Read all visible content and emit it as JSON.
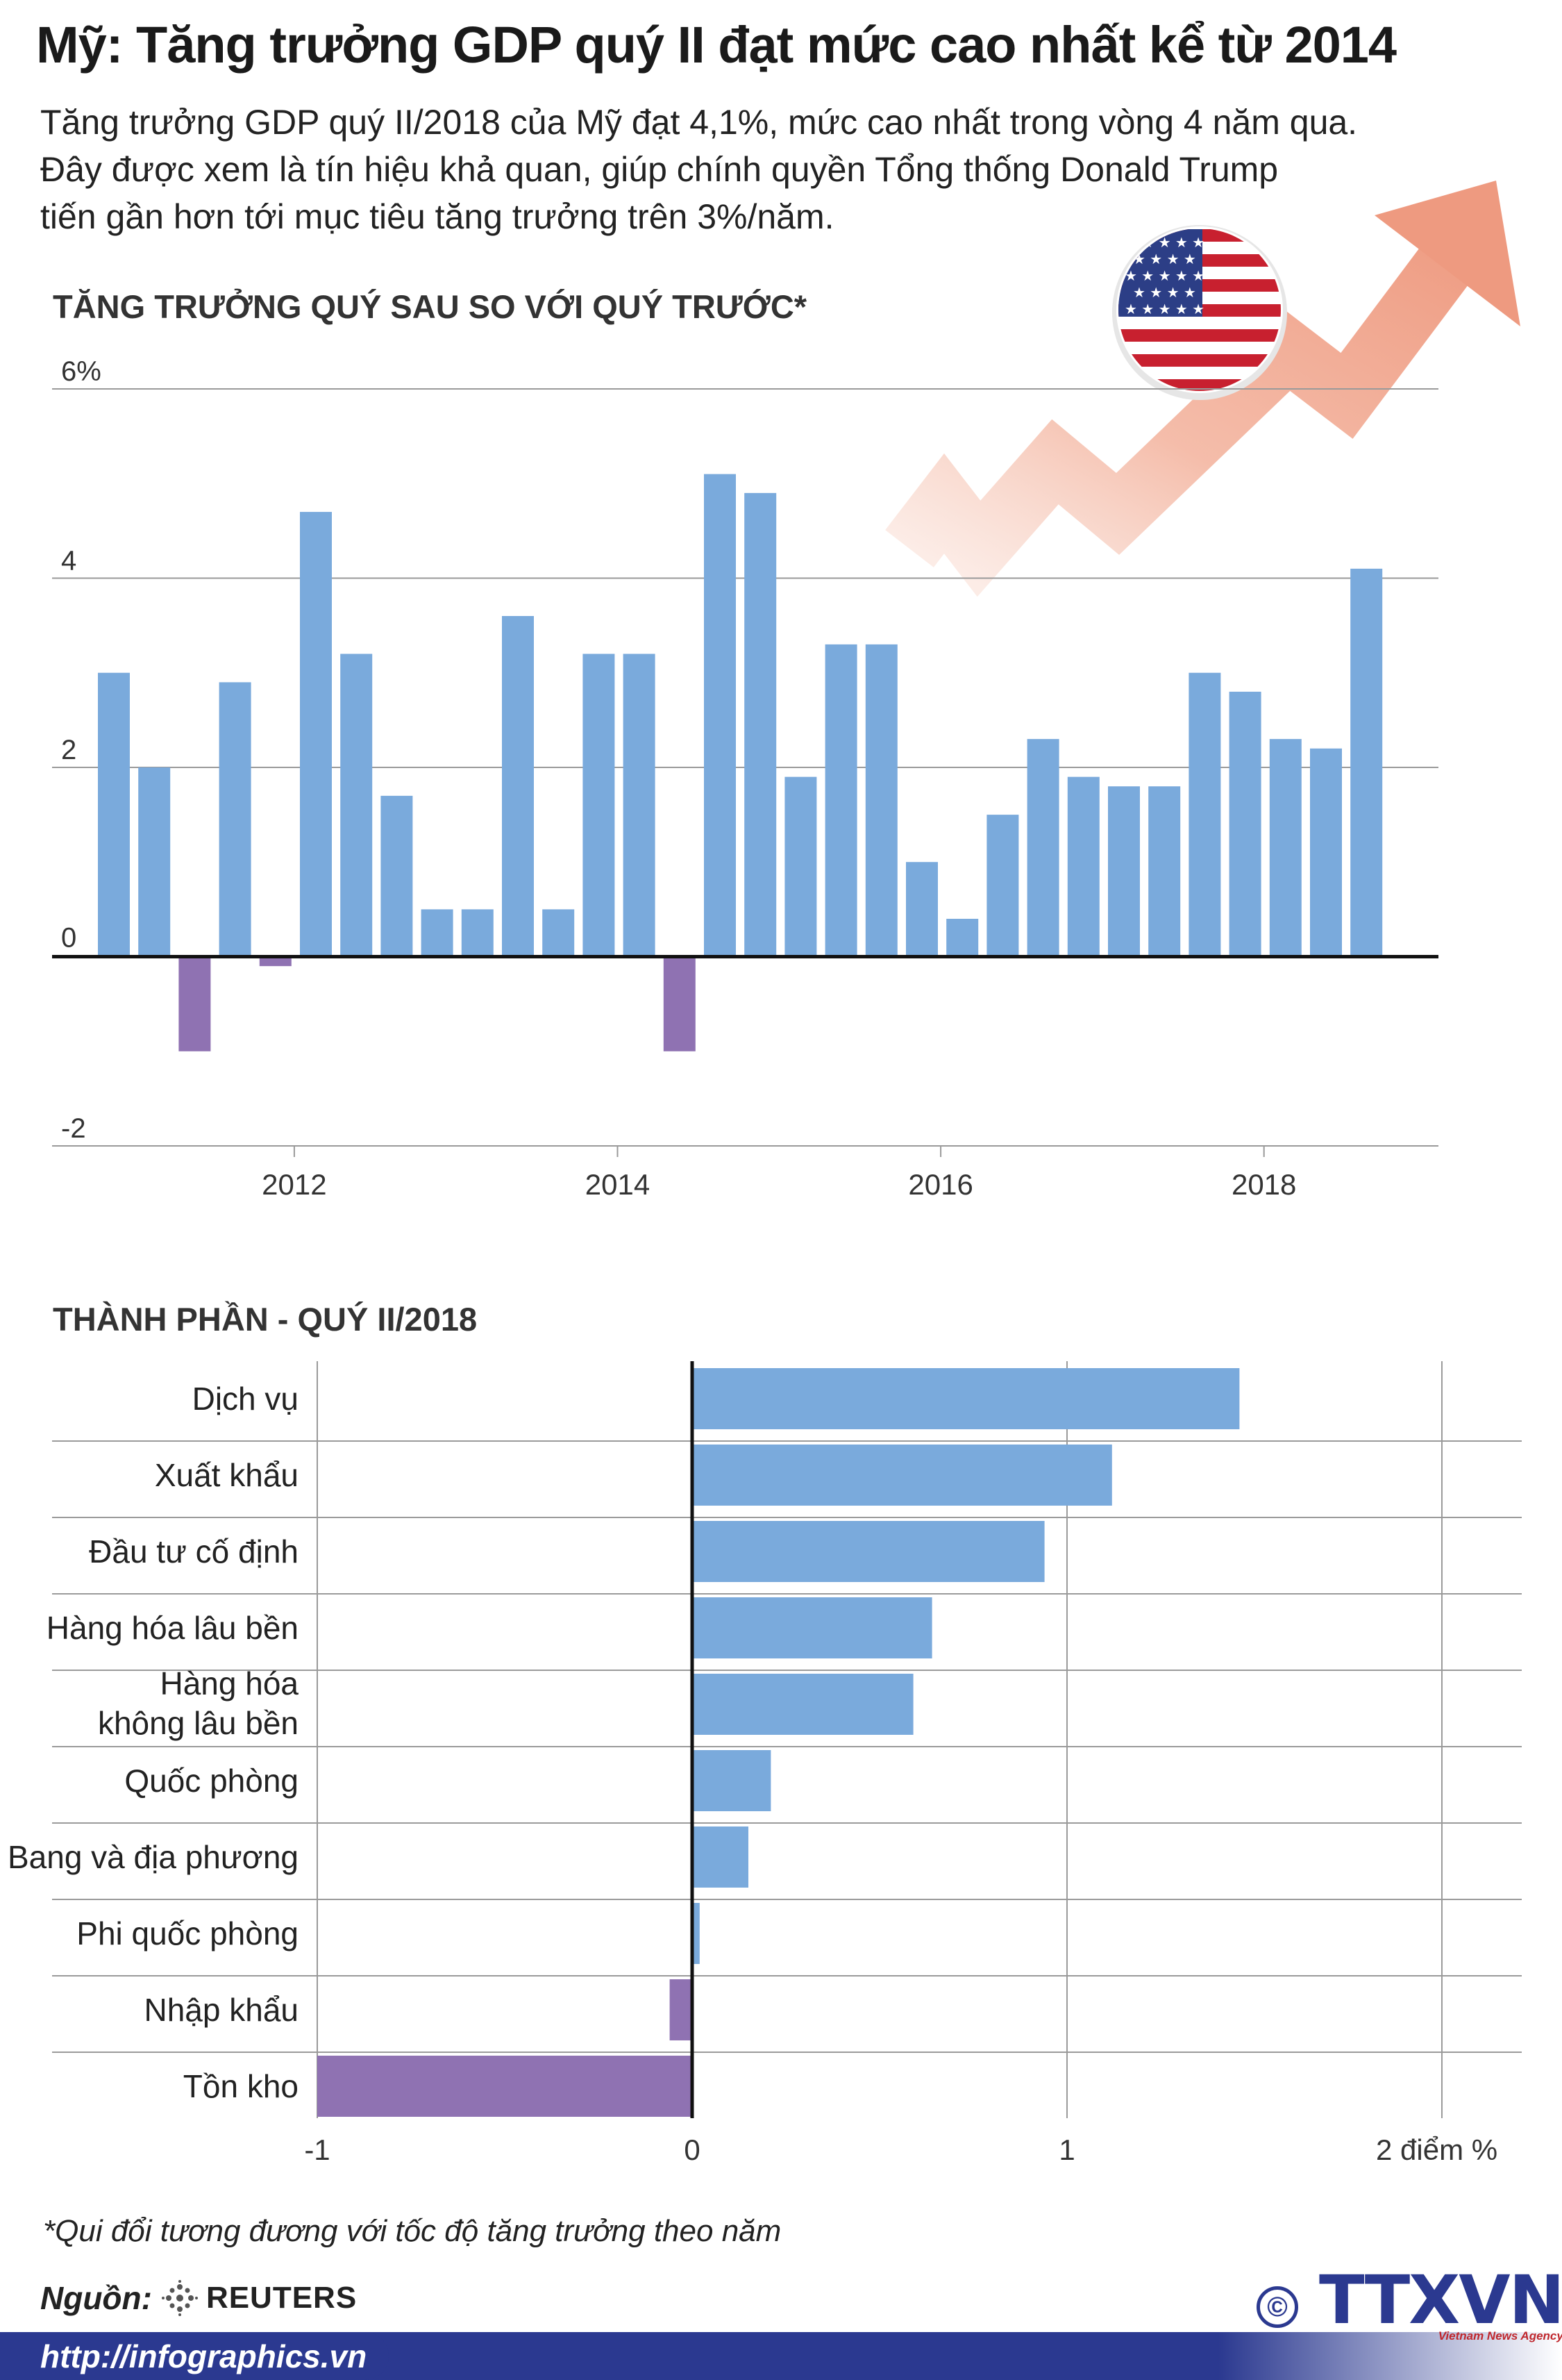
{
  "title": "Mỹ: Tăng trưởng GDP quý II đạt mức cao nhất kể từ 2014",
  "lead": [
    "Tăng trưởng GDP quý II/2018 của Mỹ đạt 4,1%, mức cao nhất trong vòng 4 năm qua.",
    "Đây được xem là tín hiệu khả quan, giúp chính quyền Tổng thống Donald Trump",
    "tiến gần hơn tới mục tiêu tăng trưởng trên 3%/năm."
  ],
  "colors": {
    "positive": "#7aaadc",
    "negative": "#8f72b2",
    "grid": "#9a9a9a",
    "brand": "#2b3990",
    "arrow": "#f0a48c"
  },
  "chart_data": [
    {
      "type": "bar",
      "title": "TĂNG TRƯỞNG QUÝ SAU SO VỚI QUÝ TRƯỚC*",
      "ylim": [
        -2,
        6
      ],
      "yticks": [
        -2,
        0,
        2,
        4,
        6
      ],
      "ytick_labels": [
        "-2",
        "0",
        "2",
        "4",
        "6%"
      ],
      "xtick_labels": [
        "2012",
        "2014",
        "2016",
        "2018"
      ],
      "xtick_quarter_index": [
        5,
        13,
        21,
        29
      ],
      "values": [
        3.0,
        2.0,
        -1.0,
        2.9,
        -0.1,
        4.7,
        3.2,
        1.7,
        0.5,
        0.5,
        3.6,
        0.5,
        3.2,
        3.2,
        -1.0,
        5.1,
        4.9,
        1.9,
        3.3,
        3.3,
        1.0,
        0.4,
        1.5,
        2.3,
        1.9,
        1.8,
        1.8,
        3.0,
        2.8,
        2.3,
        2.2,
        4.1
      ]
    },
    {
      "type": "bar",
      "orientation": "horizontal",
      "title": "THÀNH PHẦN - QUÝ II/2018",
      "xlim": [
        -1,
        2
      ],
      "xticks": [
        -1,
        0,
        1,
        2
      ],
      "xtick_labels": [
        "-1",
        "0",
        "1",
        "2 điểm %"
      ],
      "categories": [
        [
          "Dịch vụ"
        ],
        [
          "Xuất khẩu"
        ],
        [
          "Đầu tư cố định"
        ],
        [
          "Hàng hóa lâu bền"
        ],
        [
          "Hàng hóa",
          "không lâu bền"
        ],
        [
          "Quốc phòng"
        ],
        [
          "Bang và địa phương"
        ],
        [
          "Phi quốc phòng"
        ],
        [
          "Nhập khẩu"
        ],
        [
          "Tồn kho"
        ]
      ],
      "values": [
        1.46,
        1.12,
        0.94,
        0.64,
        0.59,
        0.21,
        0.15,
        0.02,
        -0.06,
        -1.0
      ]
    }
  ],
  "footnote": "*Qui đổi tương đương với tốc độ tăng trưởng theo năm",
  "source_label": "Nguồn:",
  "source_name": "REUTERS",
  "url": "http://infographics.vn",
  "logo": {
    "copyright": "©",
    "name": "TTXVN",
    "sub": "Vietnam News Agency"
  }
}
